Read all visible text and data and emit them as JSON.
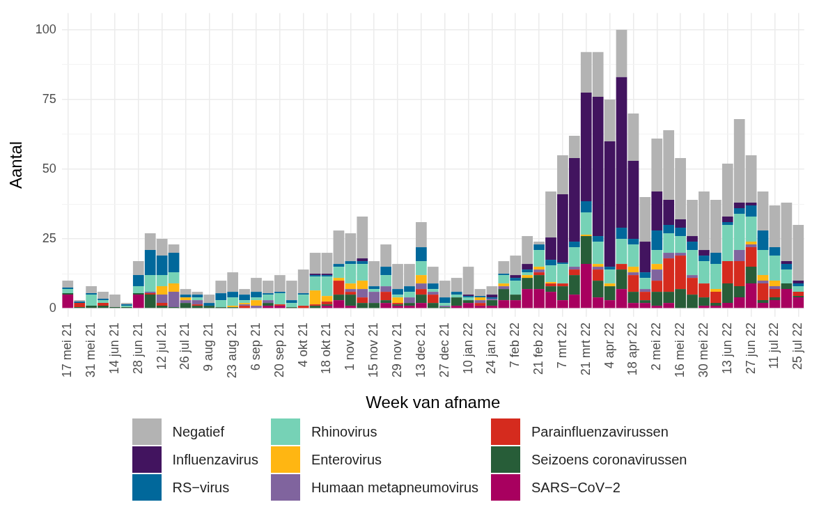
{
  "chart_data": {
    "type": "bar",
    "xlabel": "Week van afname",
    "ylabel": "Aantal",
    "stacked": true,
    "grid": true,
    "legend": "bottom",
    "categories": [
      "17 mei 21",
      null,
      "31 mei 21",
      null,
      "14 jun 21",
      null,
      "28 jun 21",
      null,
      "12 jul 21",
      null,
      "26 jul 21",
      null,
      "9 aug 21",
      null,
      "23 aug 21",
      null,
      "6 sep 21",
      null,
      "20 sep 21",
      null,
      "4 okt 21",
      null,
      "18 okt 21",
      null,
      "1 nov 21",
      null,
      "15 nov 21",
      null,
      "29 nov 21",
      null,
      "13 dec 21",
      null,
      "27 dec 21",
      null,
      "10 jan 22",
      null,
      "24 jan 22",
      null,
      "7 feb 22",
      null,
      "21 feb 22",
      null,
      "7 mrt 22",
      null,
      "21 mrt 22",
      null,
      "4 apr 22",
      null,
      "18 apr 22",
      null,
      "2 mei 22",
      null,
      "16 mei 22",
      null,
      "30 mei 22",
      null,
      "13 jun 22",
      null,
      "27 jun 22",
      null,
      "11 jul 22",
      null,
      "25 jul 22"
    ],
    "ylim": [
      -3,
      106
    ],
    "yticks": [
      0,
      {
        "value": 12.5,
        "label": null
      },
      25,
      {
        "value": 37.5,
        "label": null
      },
      50,
      {
        "value": 62.5,
        "label": null
      },
      75,
      {
        "value": 87.5,
        "label": null
      },
      100
    ],
    "series": [
      {
        "name": "SARS−CoV−2",
        "color": "#a8005f",
        "values": [
          5,
          0,
          0,
          0,
          0,
          0,
          5,
          0,
          0,
          0,
          0,
          0,
          0,
          0,
          0,
          0,
          0,
          1,
          1,
          0,
          0,
          0,
          1,
          3,
          1,
          0,
          0,
          2,
          1,
          1,
          2,
          0,
          0,
          1,
          2,
          1,
          1,
          3,
          3,
          7,
          7,
          6,
          3,
          5,
          16,
          4,
          3,
          7,
          2,
          2,
          1,
          2,
          0,
          0,
          1,
          1,
          2,
          4,
          9,
          2,
          3,
          7,
          4
        ]
      },
      {
        "name": "Seizoens coronavirussen",
        "color": "#275d38",
        "values": [
          0.5,
          0.5,
          1,
          1,
          0.5,
          0.5,
          0.5,
          5,
          1,
          0.5,
          2,
          1,
          1,
          0.5,
          0.5,
          0,
          0,
          1,
          0,
          0.5,
          0,
          1,
          0.5,
          2,
          4,
          2,
          2,
          1,
          0.5,
          1,
          3,
          2,
          0.5,
          3,
          1,
          0,
          2,
          4,
          2,
          4,
          5,
          2,
          5,
          7,
          10,
          6,
          5,
          7,
          4,
          1,
          5,
          4,
          7,
          5,
          3,
          1,
          7,
          4,
          6,
          1,
          1,
          2,
          0.5
        ]
      },
      {
        "name": "Parainfluenzavirussen",
        "color": "#d52b1e",
        "values": [
          0,
          1.5,
          0,
          1,
          0,
          0,
          0,
          0.5,
          1,
          0,
          0,
          0.5,
          0,
          0,
          0,
          1,
          0,
          0,
          0.5,
          0,
          1,
          0.5,
          1,
          5,
          1,
          2,
          0,
          3,
          0.5,
          0,
          2,
          3,
          0,
          0,
          0,
          1,
          0,
          0,
          0,
          0,
          1,
          1,
          1,
          2,
          0,
          4,
          0,
          2,
          6,
          3,
          4,
          12,
          12,
          6,
          5,
          4,
          8,
          9,
          7,
          6,
          3,
          0,
          1.5
        ]
      },
      {
        "name": "Humaan metapneumovirus",
        "color": "#80649e",
        "values": [
          0,
          0,
          0,
          0,
          0,
          0,
          0,
          0.5,
          3,
          5.5,
          1,
          1.5,
          0,
          0,
          0,
          0.5,
          1,
          1,
          0,
          0,
          0,
          0,
          0,
          0,
          1,
          3,
          4,
          2,
          0,
          2,
          2,
          1,
          0.5,
          0,
          0,
          1,
          0.5,
          1,
          0,
          0,
          1,
          0,
          0,
          1,
          0,
          1,
          0,
          0,
          1,
          1,
          4,
          2,
          1,
          1,
          0,
          0,
          0,
          4,
          1,
          1,
          1,
          0,
          0
        ]
      },
      {
        "name": "Enterovirus",
        "color": "#ffb612",
        "values": [
          0,
          0,
          0,
          0,
          0,
          0,
          0,
          0,
          3,
          3,
          1,
          0,
          0,
          0,
          0.5,
          0.5,
          2,
          0,
          0,
          0,
          0,
          5,
          2,
          1,
          2,
          3,
          0,
          0,
          2,
          0,
          3,
          0,
          0,
          0,
          0,
          1,
          0,
          1,
          0,
          1,
          1,
          0.5,
          0,
          0,
          0.5,
          1,
          1,
          0,
          2,
          0,
          2,
          0,
          0,
          0,
          0,
          1,
          0,
          0,
          1,
          2,
          2,
          0,
          0
        ]
      },
      {
        "name": "Rhinovirus",
        "color": "#76d2b6",
        "values": [
          1.5,
          0,
          4,
          1,
          0,
          0.5,
          2.5,
          6,
          4,
          4,
          0,
          1,
          0,
          2.5,
          3,
          1,
          1,
          2,
          4,
          1.5,
          4,
          5,
          7,
          4,
          7,
          6,
          1,
          4,
          1,
          2,
          5,
          1,
          1,
          1,
          1,
          0,
          0,
          3,
          5,
          1,
          6,
          6,
          7,
          7,
          8,
          8,
          5,
          9,
          8,
          4,
          5,
          7,
          6,
          9,
          8,
          9,
          13,
          13,
          9,
          9,
          9,
          5,
          2
        ]
      },
      {
        "name": "RS−virus",
        "color": "#01689b",
        "values": [
          0.5,
          0.5,
          0.5,
          0.5,
          0,
          0.5,
          4,
          9,
          7,
          7,
          1,
          1,
          1,
          2.5,
          2,
          2,
          2,
          0.5,
          0.5,
          1,
          0.5,
          0.5,
          0.5,
          1,
          1,
          1,
          1,
          3,
          2,
          2,
          5,
          2,
          2,
          1,
          0.5,
          0.5,
          0.5,
          0.5,
          1,
          1,
          2,
          2,
          0.5,
          2,
          4,
          2,
          1,
          4,
          2,
          2,
          7,
          3,
          3,
          3,
          2,
          4,
          1,
          2,
          4,
          7,
          3,
          2,
          1
        ]
      },
      {
        "name": "Influenzavirus",
        "color": "#42145f",
        "values": [
          0,
          0,
          0,
          0,
          0,
          0,
          0,
          0,
          0,
          0,
          0,
          0,
          0,
          0,
          0,
          0,
          0,
          0,
          0,
          0,
          0,
          0.5,
          0.5,
          0,
          0,
          1,
          0,
          0,
          0,
          0,
          0,
          0,
          0,
          0,
          0.5,
          0,
          1,
          0,
          1,
          2,
          0,
          8,
          24.5,
          30,
          39,
          50,
          45,
          54,
          28,
          11,
          14,
          9,
          3,
          2,
          2,
          0,
          2,
          2,
          1,
          0,
          0,
          1,
          1
        ]
      },
      {
        "name": "Negatief",
        "color": "#b3b3b3",
        "values": [
          2.5,
          0.5,
          2.5,
          2.5,
          4.5,
          0.5,
          5,
          6,
          6,
          3,
          2,
          1,
          3,
          4.5,
          7,
          2,
          5,
          4.5,
          6,
          7,
          8.5,
          7.5,
          7.5,
          12,
          10,
          15,
          9,
          8,
          9,
          8,
          9,
          6,
          6,
          5,
          10,
          2.5,
          3,
          4.5,
          7,
          10,
          1,
          16.5,
          14,
          8,
          14.5,
          16,
          15,
          17,
          17,
          16,
          19,
          25,
          22,
          13,
          21,
          19,
          19,
          30,
          17,
          14,
          15,
          21,
          20
        ]
      }
    ]
  }
}
